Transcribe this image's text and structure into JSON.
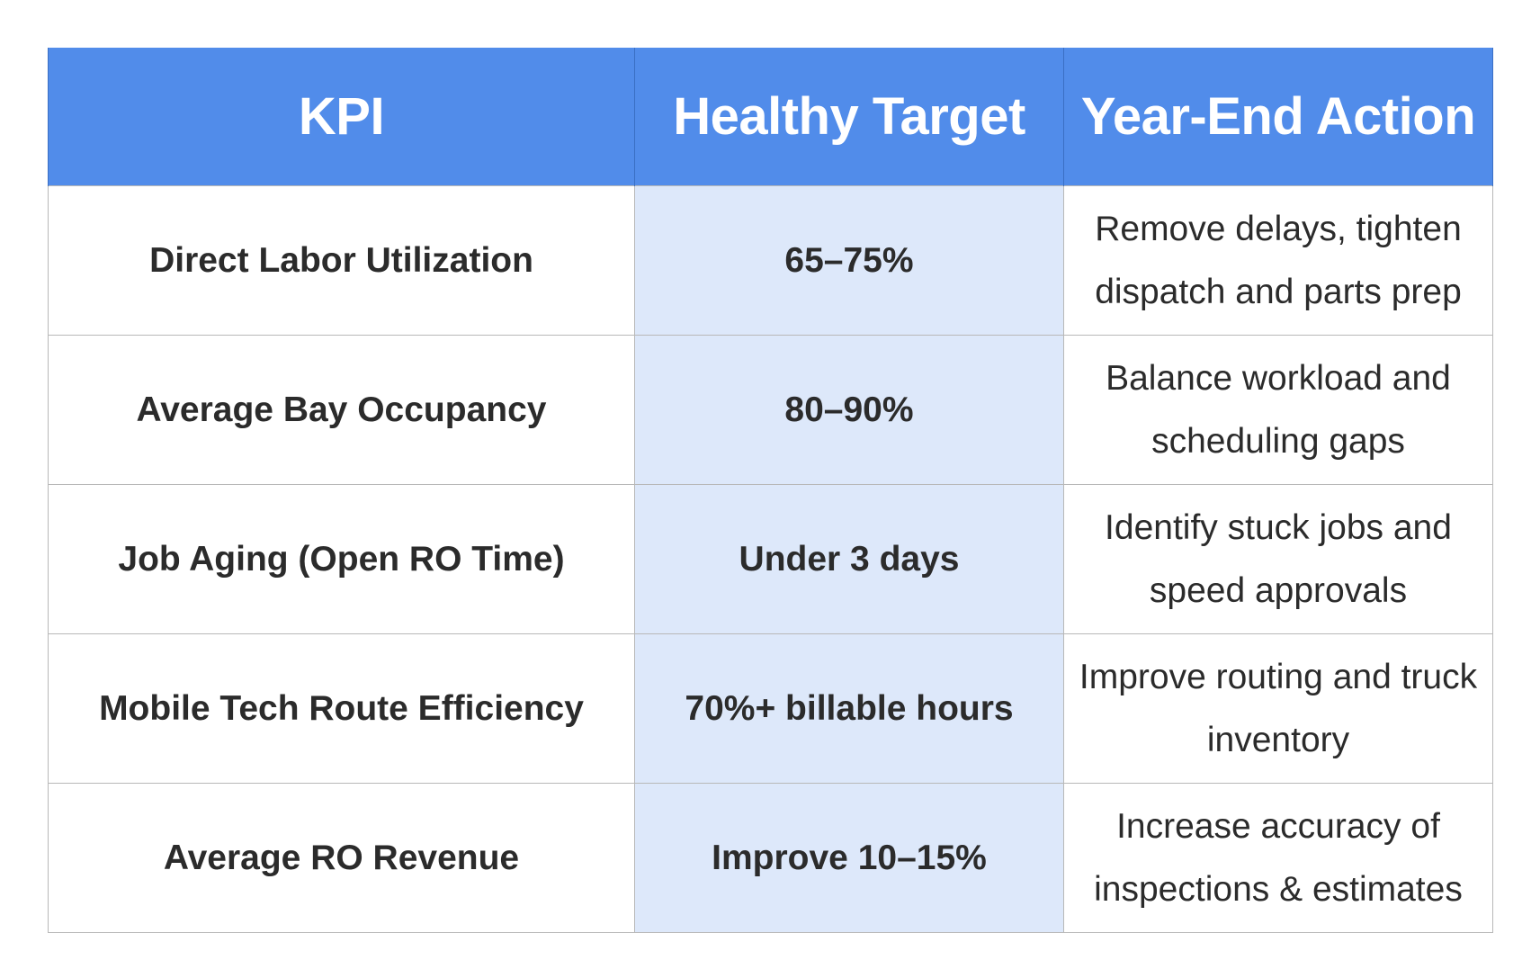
{
  "table": {
    "headers": {
      "kpi": "KPI",
      "target": "Healthy Target",
      "action": "Year-End Action"
    },
    "rows": [
      {
        "kpi": "Direct Labor Utilization",
        "target": "65–75%",
        "action": "Remove delays, tighten dispatch and parts prep"
      },
      {
        "kpi": "Average Bay Occupancy",
        "target": "80–90%",
        "action": "Balance workload and scheduling gaps"
      },
      {
        "kpi": "Job Aging (Open RO Time)",
        "target": "Under 3 days",
        "action": "Identify stuck jobs and speed approvals"
      },
      {
        "kpi": "Mobile Tech Route Efficiency",
        "target": "70%+ billable hours",
        "action": "Improve routing and truck inventory"
      },
      {
        "kpi": "Average RO Revenue",
        "target": "Improve 10–15%",
        "action": "Increase accuracy of inspections & estimates"
      }
    ]
  },
  "colors": {
    "header_bg": "#518cea",
    "header_text": "#ffffff",
    "target_col_bg": "#dde8fa",
    "body_text": "#2b2b2b",
    "grid_line": "#b8b8b8"
  }
}
